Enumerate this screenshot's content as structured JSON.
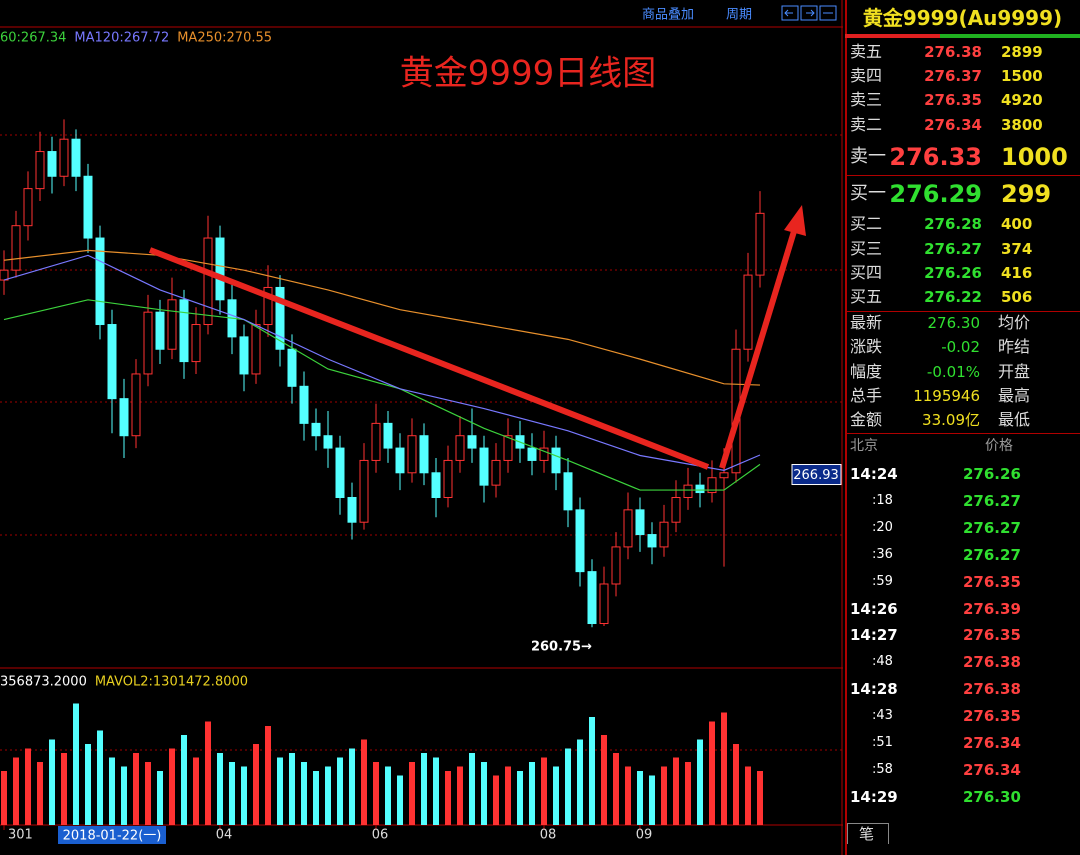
{
  "toolbar": {
    "overlay": "商品叠加",
    "period": "周期"
  },
  "chart_data": {
    "type": "candlestick",
    "title": "黄金9999日线图",
    "ylim": [
      259.1,
      285.0
    ],
    "up_color": "#ff3232",
    "down_color": "#54ffff",
    "xlim": [
      0,
      63
    ],
    "xticks": [
      {
        "value": 0,
        "label": "301"
      },
      {
        "value": 18,
        "label": "04"
      },
      {
        "value": 31,
        "label": "06"
      },
      {
        "value": 45,
        "label": "08"
      },
      {
        "value": 53,
        "label": "09"
      }
    ],
    "cursor": {
      "value": 9,
      "label": "2018-01-22(一)"
    },
    "price_marker": 266.93,
    "low_label": {
      "value": 49,
      "label": "260.75→"
    },
    "ohlc": [
      [
        274.8,
        276.0,
        274.2,
        275.2
      ],
      [
        275.2,
        277.6,
        274.9,
        277.0
      ],
      [
        277.0,
        279.2,
        276.4,
        278.5
      ],
      [
        278.5,
        280.8,
        278.0,
        280.0
      ],
      [
        280.0,
        280.6,
        278.3,
        279.0
      ],
      [
        279.0,
        281.3,
        278.6,
        280.5
      ],
      [
        280.5,
        280.9,
        278.4,
        279.0
      ],
      [
        279.0,
        279.5,
        275.9,
        276.5
      ],
      [
        276.5,
        277.0,
        272.4,
        273.0
      ],
      [
        273.0,
        273.6,
        268.6,
        270.0
      ],
      [
        270.0,
        270.8,
        267.6,
        268.5
      ],
      [
        268.5,
        271.6,
        268.0,
        271.0
      ],
      [
        271.0,
        274.2,
        270.5,
        273.5
      ],
      [
        273.5,
        274.0,
        271.4,
        272.0
      ],
      [
        272.0,
        274.9,
        271.6,
        274.0
      ],
      [
        274.0,
        274.4,
        270.8,
        271.5
      ],
      [
        271.5,
        273.7,
        271.0,
        273.0
      ],
      [
        273.0,
        277.4,
        272.6,
        276.5
      ],
      [
        276.5,
        277.0,
        273.4,
        274.0
      ],
      [
        274.0,
        274.6,
        271.8,
        272.5
      ],
      [
        272.5,
        273.0,
        270.3,
        271.0
      ],
      [
        271.0,
        273.6,
        270.6,
        273.0
      ],
      [
        273.0,
        275.4,
        272.5,
        274.5
      ],
      [
        274.5,
        275.0,
        271.3,
        272.0
      ],
      [
        272.0,
        272.6,
        269.8,
        270.5
      ],
      [
        270.5,
        271.1,
        268.3,
        269.0
      ],
      [
        269.0,
        269.6,
        267.9,
        268.5
      ],
      [
        268.5,
        269.5,
        267.2,
        268.0
      ],
      [
        268.0,
        268.5,
        265.3,
        266.0
      ],
      [
        266.0,
        266.6,
        264.3,
        265.0
      ],
      [
        265.0,
        268.2,
        264.7,
        267.5
      ],
      [
        267.5,
        269.8,
        267.0,
        269.0
      ],
      [
        269.0,
        269.5,
        267.4,
        268.0
      ],
      [
        268.0,
        268.6,
        266.3,
        267.0
      ],
      [
        267.0,
        269.2,
        266.6,
        268.5
      ],
      [
        268.5,
        269.0,
        266.5,
        267.0
      ],
      [
        267.0,
        267.6,
        265.2,
        266.0
      ],
      [
        266.0,
        268.1,
        265.6,
        267.5
      ],
      [
        267.5,
        269.3,
        267.0,
        268.5
      ],
      [
        268.5,
        269.6,
        267.4,
        268.0
      ],
      [
        268.0,
        268.5,
        265.8,
        266.5
      ],
      [
        266.5,
        268.2,
        266.0,
        267.5
      ],
      [
        267.5,
        269.2,
        267.0,
        268.5
      ],
      [
        268.5,
        269.1,
        267.4,
        268.0
      ],
      [
        268.0,
        268.6,
        266.9,
        267.5
      ],
      [
        267.5,
        268.7,
        267.0,
        268.0
      ],
      [
        268.0,
        268.5,
        266.3,
        267.0
      ],
      [
        267.0,
        267.6,
        264.8,
        265.5
      ],
      [
        265.5,
        266.0,
        262.4,
        263.0
      ],
      [
        263.0,
        263.5,
        260.75,
        260.9
      ],
      [
        260.9,
        263.2,
        260.8,
        262.5
      ],
      [
        262.5,
        264.6,
        262.0,
        264.0
      ],
      [
        264.0,
        266.2,
        263.5,
        265.5
      ],
      [
        265.5,
        266.0,
        263.8,
        264.5
      ],
      [
        264.5,
        265.0,
        263.3,
        264.0
      ],
      [
        264.0,
        265.7,
        263.6,
        265.0
      ],
      [
        265.0,
        266.7,
        264.6,
        266.0
      ],
      [
        266.0,
        267.2,
        265.5,
        266.5
      ],
      [
        266.5,
        267.0,
        265.6,
        266.2
      ],
      [
        266.2,
        267.5,
        265.8,
        266.8
      ],
      [
        266.8,
        268.0,
        263.2,
        267.0
      ],
      [
        267.0,
        272.8,
        266.6,
        272.0
      ],
      [
        272.0,
        275.9,
        271.5,
        275.0
      ],
      [
        275.0,
        278.4,
        274.5,
        277.5
      ]
    ],
    "ma_lines": [
      {
        "name": "60:267.34",
        "color": "#3cd23c",
        "x": [
          0,
          7,
          13,
          20,
          27,
          33,
          40,
          47,
          53,
          60,
          63
        ],
        "values": [
          273.2,
          274.0,
          273.6,
          273.2,
          271.2,
          270.4,
          268.8,
          267.5,
          266.3,
          266.3,
          267.34
        ]
      },
      {
        "name": "MA120:267.72",
        "color": "#7878ff",
        "x": [
          0,
          7,
          13,
          20,
          27,
          33,
          40,
          47,
          53,
          60,
          63
        ],
        "values": [
          274.8,
          275.8,
          274.4,
          273.2,
          271.6,
          270.4,
          269.6,
          268.7,
          267.7,
          267.1,
          267.72
        ]
      },
      {
        "name": "MA250:270.55",
        "color": "#e8902c",
        "x": [
          0,
          7,
          13,
          20,
          27,
          33,
          40,
          47,
          53,
          60,
          63
        ],
        "values": [
          275.6,
          276.0,
          275.8,
          275.2,
          274.4,
          273.6,
          273.0,
          272.4,
          271.6,
          270.6,
          270.55
        ]
      }
    ],
    "volume": {
      "label": "356873.2000",
      "mavol_label": "MAVOL2:1301472.8000",
      "ylim": [
        0,
        3000000
      ],
      "values": [
        1200000,
        1500000,
        1700000,
        1400000,
        1900000,
        1600000,
        2700000,
        1800000,
        2100000,
        1500000,
        1300000,
        1600000,
        1400000,
        1200000,
        1700000,
        2000000,
        1500000,
        2300000,
        1600000,
        1400000,
        1300000,
        1800000,
        2200000,
        1500000,
        1600000,
        1400000,
        1200000,
        1300000,
        1500000,
        1700000,
        1900000,
        1400000,
        1300000,
        1100000,
        1400000,
        1600000,
        1500000,
        1200000,
        1300000,
        1600000,
        1400000,
        1100000,
        1300000,
        1200000,
        1400000,
        1500000,
        1300000,
        1700000,
        1900000,
        2400000,
        2000000,
        1600000,
        1300000,
        1200000,
        1100000,
        1300000,
        1500000,
        1400000,
        1900000,
        2300000,
        2500000,
        1800000,
        1300000,
        1200000
      ]
    }
  },
  "quote_panel": {
    "title": "黄金9999(Au9999)",
    "asks": [
      [
        "卖五",
        "276.38",
        "2899"
      ],
      [
        "卖四",
        "276.37",
        "1500"
      ],
      [
        "卖三",
        "276.35",
        "4920"
      ],
      [
        "卖二",
        "276.34",
        "3800"
      ],
      [
        "卖一",
        "276.33",
        "1000"
      ]
    ],
    "bids": [
      [
        "买一",
        "276.29",
        "299"
      ],
      [
        "买二",
        "276.28",
        "400"
      ],
      [
        "买三",
        "276.27",
        "374"
      ],
      [
        "买四",
        "276.26",
        "416"
      ],
      [
        "买五",
        "276.22",
        "506"
      ]
    ],
    "stats": [
      [
        "最新",
        "276.30",
        "均价"
      ],
      [
        "涨跌",
        "-0.02",
        "昨结"
      ],
      [
        "幅度",
        "-0.01%",
        "开盘"
      ],
      [
        "总手",
        "1195946",
        "最高"
      ],
      [
        "金额",
        "33.09亿",
        "最低"
      ]
    ],
    "ticks_header": [
      "北京",
      "价格"
    ],
    "ticks": [
      {
        "time": "14:24",
        "price": "276.26",
        "color": "green"
      },
      {
        "time": ":18",
        "price": "276.27",
        "color": "green"
      },
      {
        "time": ":20",
        "price": "276.27",
        "color": "green"
      },
      {
        "time": ":36",
        "price": "276.27",
        "color": "green"
      },
      {
        "time": ":59",
        "price": "276.35",
        "color": "red"
      },
      {
        "time": "14:26",
        "price": "276.39",
        "color": "red"
      },
      {
        "time": "14:27",
        "price": "276.35",
        "color": "red"
      },
      {
        "time": ":48",
        "price": "276.38",
        "color": "red"
      },
      {
        "time": "14:28",
        "price": "276.38",
        "color": "red"
      },
      {
        "time": ":43",
        "price": "276.35",
        "color": "red"
      },
      {
        "time": ":51",
        "price": "276.34",
        "color": "red"
      },
      {
        "time": ":58",
        "price": "276.34",
        "color": "red"
      },
      {
        "time": "14:29",
        "price": "276.30",
        "color": "green"
      }
    ],
    "tab": "笔"
  }
}
